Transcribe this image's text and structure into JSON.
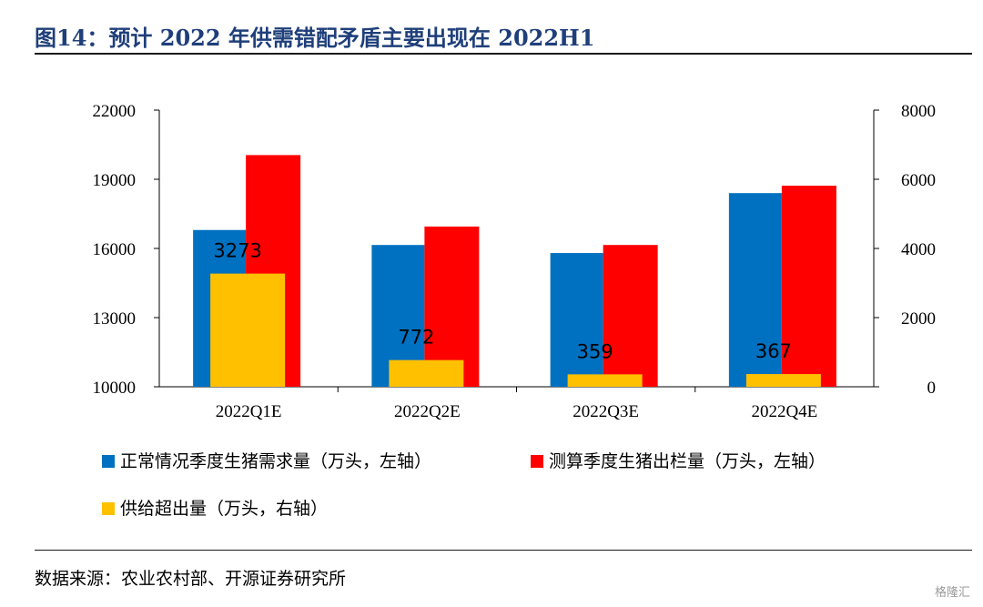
{
  "title": "图14：预计 2022 年供需错配矛盾主要出现在 2022H1",
  "source": "数据来源：农业农村部、开源证券研究所",
  "watermark": "格隆汇",
  "chart_data": {
    "type": "bar",
    "categories": [
      "2022Q1E",
      "2022Q2E",
      "2022Q3E",
      "2022Q4E"
    ],
    "left_axis": {
      "ylim": [
        10000,
        22000
      ],
      "ticks": [
        "10000",
        "13000",
        "16000",
        "19000",
        "22000"
      ]
    },
    "right_axis": {
      "ylim": [
        0,
        8000
      ],
      "ticks": [
        "0",
        "2000",
        "4000",
        "6000",
        "8000"
      ]
    },
    "series": [
      {
        "name": "正常情况季度生猪需求量（万头，左轴）",
        "axis": "left",
        "color": "#0070c0",
        "values": [
          16800,
          16150,
          15800,
          18400
        ]
      },
      {
        "name": "测算季度生猪出栏量（万头，左轴）",
        "axis": "left",
        "color": "#ff0000",
        "values": [
          20050,
          16950,
          16150,
          18720
        ]
      },
      {
        "name": "供给超出量（万头，右轴）",
        "axis": "right",
        "color": "#ffc000",
        "values": [
          3273,
          772,
          359,
          367
        ],
        "labels": [
          "3273",
          "772",
          "359",
          "367"
        ]
      }
    ],
    "legend_position": "bottom",
    "grid": false
  }
}
